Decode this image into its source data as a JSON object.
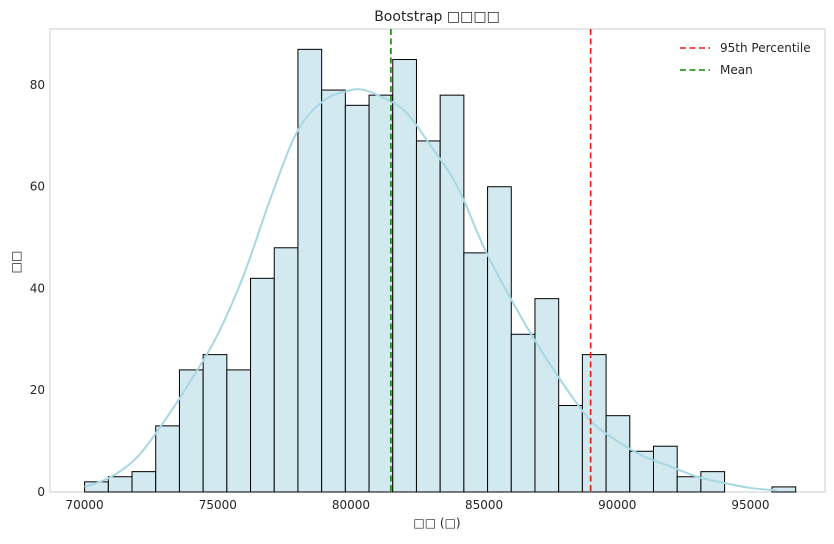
{
  "chart_data": {
    "type": "bar",
    "title": "Bootstrap □□□□",
    "xlabel": "□□ (□)",
    "ylabel": "□□",
    "xlim": [
      68700,
      97800
    ],
    "ylim": [
      0,
      91
    ],
    "x_ticks": [
      70000,
      75000,
      80000,
      85000,
      90000,
      95000
    ],
    "y_ticks": [
      0,
      20,
      40,
      60,
      80
    ],
    "grid": false,
    "legend_position": "top-right",
    "bin_width": 890,
    "bins": [
      {
        "start": 70000,
        "count": 2
      },
      {
        "start": 70890,
        "count": 3
      },
      {
        "start": 71780,
        "count": 4
      },
      {
        "start": 72670,
        "count": 13
      },
      {
        "start": 73560,
        "count": 24
      },
      {
        "start": 74450,
        "count": 27
      },
      {
        "start": 75340,
        "count": 24
      },
      {
        "start": 76230,
        "count": 42
      },
      {
        "start": 77120,
        "count": 48
      },
      {
        "start": 78010,
        "count": 87
      },
      {
        "start": 78900,
        "count": 79
      },
      {
        "start": 79790,
        "count": 76
      },
      {
        "start": 80680,
        "count": 78
      },
      {
        "start": 81570,
        "count": 85
      },
      {
        "start": 82460,
        "count": 69
      },
      {
        "start": 83350,
        "count": 78
      },
      {
        "start": 84240,
        "count": 47
      },
      {
        "start": 85130,
        "count": 60
      },
      {
        "start": 86020,
        "count": 31
      },
      {
        "start": 86910,
        "count": 38
      },
      {
        "start": 87800,
        "count": 17
      },
      {
        "start": 88690,
        "count": 27
      },
      {
        "start": 89580,
        "count": 15
      },
      {
        "start": 90470,
        "count": 8
      },
      {
        "start": 91360,
        "count": 9
      },
      {
        "start": 92250,
        "count": 3
      },
      {
        "start": 93140,
        "count": 4
      },
      {
        "start": 94030,
        "count": 0
      },
      {
        "start": 94920,
        "count": 0
      },
      {
        "start": 95810,
        "count": 1
      }
    ],
    "kde": {
      "x": [
        70000,
        71000,
        72000,
        73000,
        74000,
        75000,
        76000,
        77000,
        78000,
        79000,
        80000,
        80500,
        81000,
        82000,
        83000,
        84000,
        85000,
        86000,
        87000,
        88000,
        89000,
        90000,
        91000,
        92000,
        93000,
        94000,
        95000,
        96000
      ],
      "y": [
        1,
        3,
        7,
        14,
        22,
        31,
        43,
        58,
        71,
        77,
        79,
        79,
        78,
        75,
        68,
        60,
        48,
        38,
        29,
        21,
        14,
        10,
        7,
        5,
        3,
        1.8,
        0.8,
        0.3
      ]
    },
    "reference_lines": [
      {
        "name": "95th Percentile",
        "x": 89000,
        "color": "#e8190f",
        "style": "dashed"
      },
      {
        "name": "Mean",
        "x": 81500,
        "color": "#0a8a00",
        "style": "dashed"
      }
    ],
    "colors": {
      "bar_fill": "#d3e9f0",
      "bar_edge": "#000000",
      "kde_line": "#a8d7e4",
      "axes": "#cccccc"
    }
  }
}
